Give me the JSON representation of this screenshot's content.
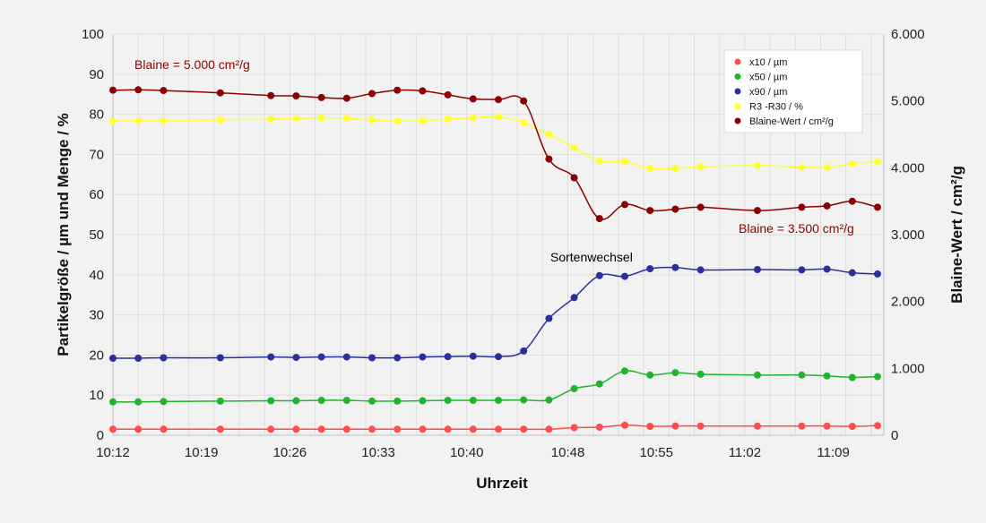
{
  "chart_data": {
    "type": "line",
    "title": "",
    "xlabel": "Uhrzeit",
    "ylabel_left": "Partikelgröße / µm und Menge / %",
    "ylabel_right": "Blaine-Wert / cm²/g",
    "x_tick_labels": [
      "10:12",
      "10:19",
      "10:26",
      "10:33",
      "10:40",
      "10:48",
      "10:55",
      "11:02",
      "11:09"
    ],
    "x_tick_values_min": [
      0,
      7,
      14,
      21,
      28,
      36,
      43,
      50,
      57
    ],
    "x_range_min": [
      0,
      61
    ],
    "ylim_left": [
      0,
      100
    ],
    "yticks_left": [
      "0",
      "10",
      "20",
      "30",
      "40",
      "50",
      "60",
      "70",
      "80",
      "90",
      "100"
    ],
    "ylim_right": [
      0,
      6000
    ],
    "yticks_right": [
      "0",
      "1.000",
      "2.000",
      "3.000",
      "4.000",
      "5.000",
      "6.000"
    ],
    "grid": true,
    "legend_position": "top-right",
    "x_minutes": [
      0,
      2,
      4,
      8.5,
      12.5,
      14.5,
      16.5,
      18.5,
      20.5,
      22.5,
      24.5,
      26.5,
      28.5,
      30.5,
      32.5,
      34.5,
      36.5,
      38.5,
      40.5,
      42.5,
      44.5,
      46.5,
      51,
      54.5,
      56.5,
      58.5,
      60.5
    ],
    "series": [
      {
        "name": "x10 / µm",
        "axis": "left",
        "color": "#ff4d4d",
        "values": [
          1.5,
          1.5,
          1.5,
          1.5,
          1.5,
          1.5,
          1.5,
          1.5,
          1.5,
          1.5,
          1.5,
          1.5,
          1.5,
          1.5,
          1.5,
          1.5,
          1.9,
          2.0,
          2.5,
          2.2,
          2.3,
          2.3,
          2.3,
          2.3,
          2.3,
          2.2,
          2.4
        ]
      },
      {
        "name": "x50 / µm",
        "axis": "left",
        "color": "#1fb52b",
        "values": [
          8.3,
          8.3,
          8.4,
          8.5,
          8.6,
          8.6,
          8.7,
          8.7,
          8.5,
          8.5,
          8.6,
          8.7,
          8.7,
          8.7,
          8.8,
          8.8,
          11.6,
          12.8,
          16.0,
          15.0,
          15.6,
          15.2,
          15.0,
          15.0,
          14.8,
          14.4,
          14.6
        ]
      },
      {
        "name": "x90 / µm",
        "axis": "left",
        "color": "#2b2f9e",
        "values": [
          19.2,
          19.2,
          19.3,
          19.3,
          19.5,
          19.4,
          19.5,
          19.5,
          19.3,
          19.3,
          19.5,
          19.6,
          19.7,
          19.6,
          21.0,
          29.1,
          34.3,
          39.8,
          39.6,
          41.5,
          41.8,
          41.2,
          41.3,
          41.2,
          41.4,
          40.5,
          40.2
        ]
      },
      {
        "name": "R3 -R30 / %",
        "axis": "left",
        "color": "#ffff33",
        "values": [
          78.3,
          78.4,
          78.4,
          78.6,
          78.8,
          78.9,
          79.1,
          79.0,
          78.6,
          78.3,
          78.4,
          78.8,
          79.1,
          79.4,
          77.9,
          75.0,
          71.7,
          68.3,
          68.2,
          66.5,
          66.5,
          66.9,
          67.2,
          66.8,
          66.8,
          67.7,
          68.2
        ]
      },
      {
        "name": "Blaine-Wert / cm²/g",
        "axis": "right",
        "color": "#8b0000",
        "values": [
          5160,
          5165,
          5155,
          5120,
          5080,
          5075,
          5050,
          5040,
          5110,
          5160,
          5150,
          5090,
          5030,
          5020,
          5000,
          4130,
          3850,
          3240,
          3450,
          3360,
          3380,
          3410,
          3360,
          3410,
          3430,
          3500,
          3410
        ]
      }
    ],
    "annotations": [
      {
        "text": "Blaine = 5.000 cm²/g",
        "color": "#8b0000"
      },
      {
        "text": "Blaine = 3.500 cm²/g",
        "color": "#8b0000"
      },
      {
        "text": "Sortenwechsel",
        "color": "#000000"
      }
    ]
  }
}
